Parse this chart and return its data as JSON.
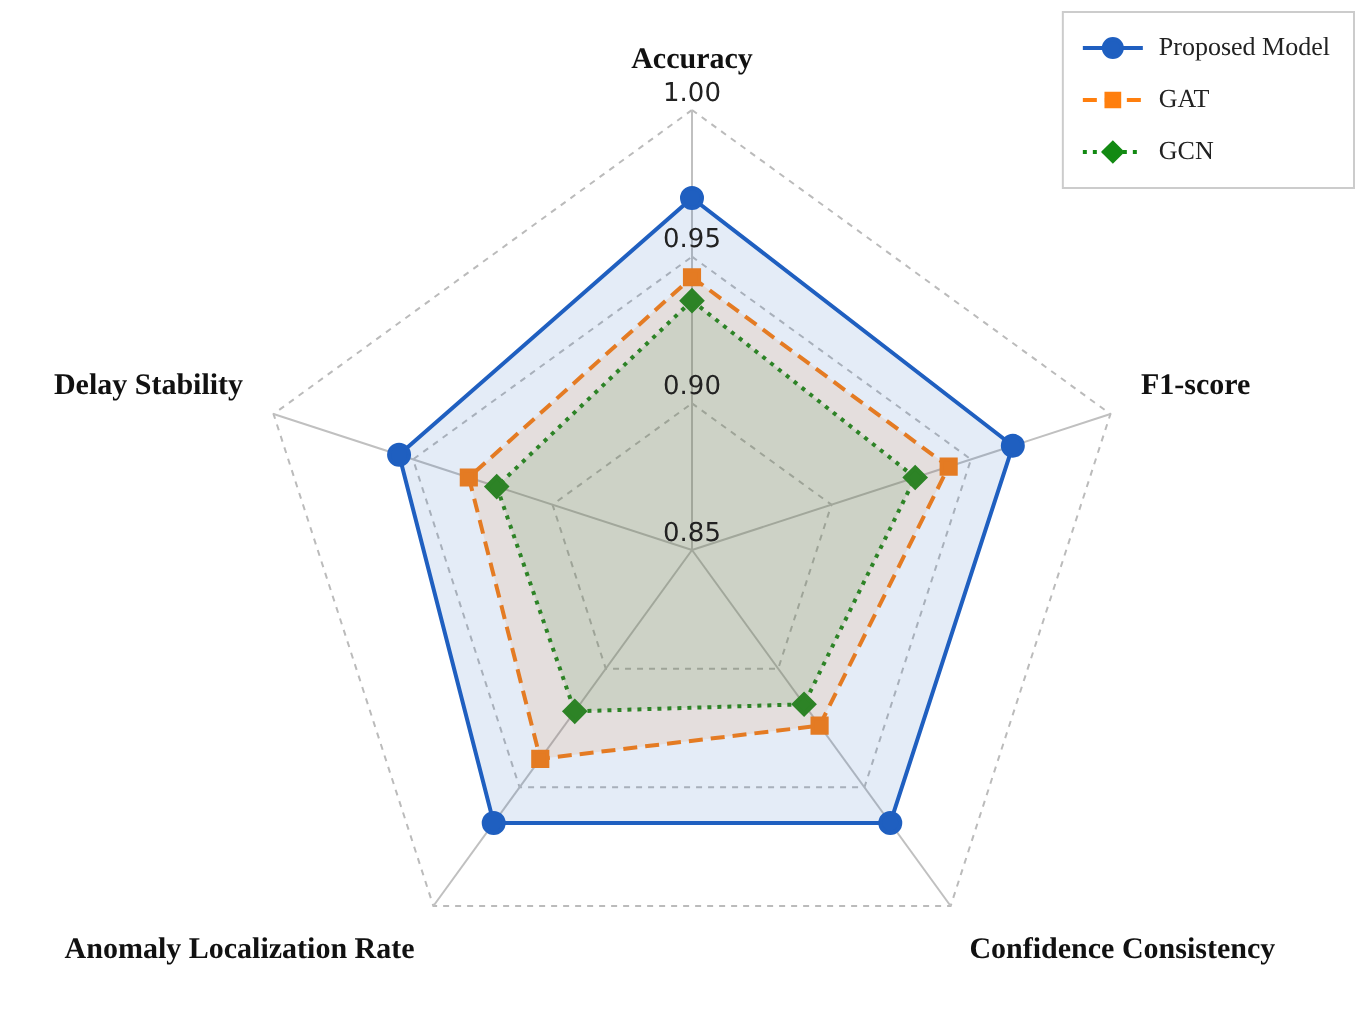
{
  "chart_data": {
    "type": "radar",
    "categories": [
      "Accuracy",
      "F1-score",
      "Confidence Consistency",
      "Anomaly Localization Rate",
      "Delay Stability"
    ],
    "ylim": [
      0.85,
      1.0
    ],
    "yticks": [
      {
        "value": 0.85,
        "label": "0.85"
      },
      {
        "value": 0.9,
        "label": "0.90"
      },
      {
        "value": 0.95,
        "label": "0.95"
      },
      {
        "value": 1.0,
        "label": "1.00"
      }
    ],
    "grid": true,
    "legend": "top right",
    "series": [
      {
        "name": "Proposed Model",
        "color": "#1f5fc0",
        "marker": "circle",
        "line_style": "solid",
        "values": [
          0.97,
          0.965,
          0.965,
          0.965,
          0.955
        ]
      },
      {
        "name": "GAT",
        "color": "#ff7f0e",
        "marker": "square",
        "line_style": "dashed",
        "values": [
          0.943,
          0.942,
          0.924,
          0.938,
          0.93
        ]
      },
      {
        "name": "GCN",
        "color": "#138a13",
        "marker": "diamond",
        "line_style": "dotted",
        "values": [
          0.935,
          0.93,
          0.915,
          0.918,
          0.92
        ]
      }
    ]
  }
}
